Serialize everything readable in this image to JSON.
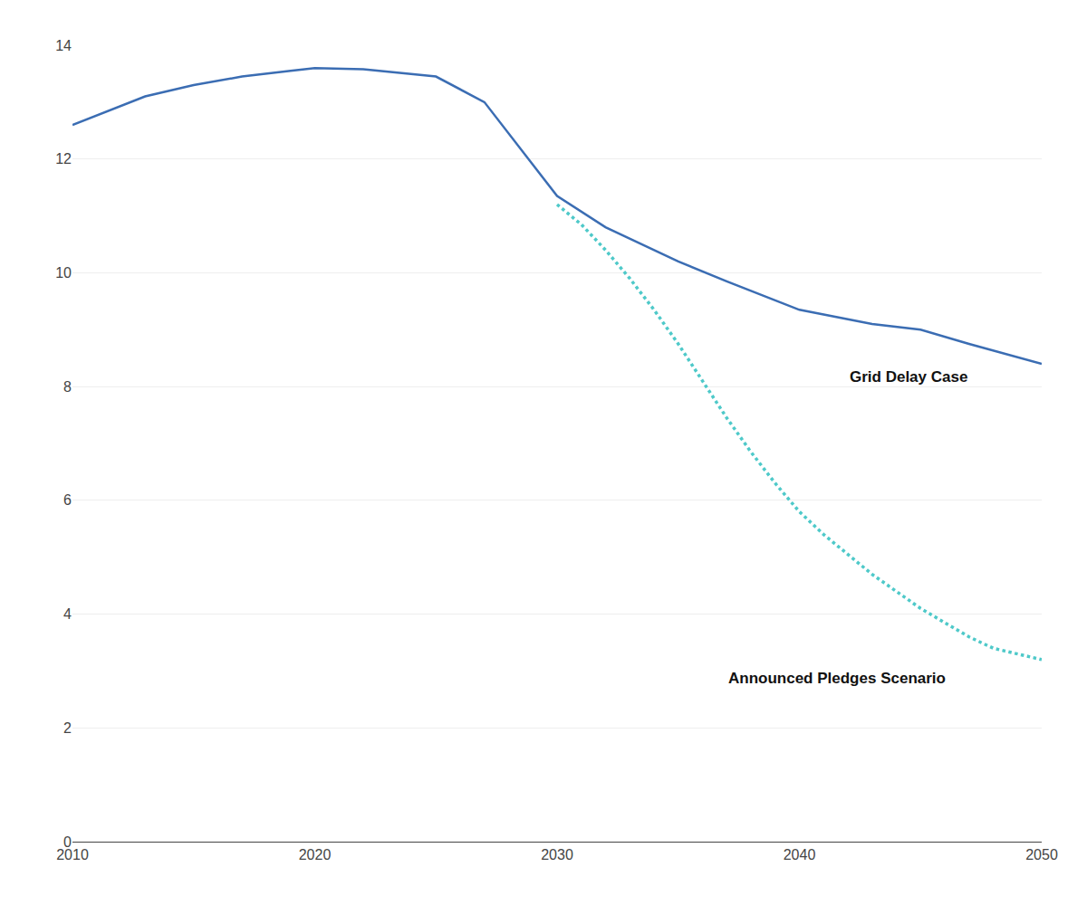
{
  "chart_data": {
    "type": "line",
    "series": [
      {
        "x": [
          2010,
          2013,
          2015,
          2017,
          2019,
          2020,
          2022,
          2025,
          2027,
          2030,
          2032,
          2035,
          2037,
          2040,
          2043,
          2045,
          2047,
          2050
        ],
        "values": [
          12.6,
          13.1,
          13.3,
          13.45,
          13.55,
          13.6,
          13.58,
          13.45,
          13.0,
          11.35,
          10.8,
          10.2,
          9.85,
          9.35,
          9.1,
          9.0,
          8.75,
          8.4
        ],
        "color": "#3B6DB3",
        "line_style": "solid"
      },
      {
        "x": [
          2030,
          2031,
          2032,
          2033,
          2034,
          2035,
          2036,
          2037,
          2038,
          2039,
          2040,
          2041,
          2042,
          2043,
          2044,
          2045,
          2046,
          2047,
          2048,
          2049,
          2050
        ],
        "values": [
          11.2,
          10.85,
          10.4,
          9.9,
          9.35,
          8.75,
          8.1,
          7.45,
          6.85,
          6.3,
          5.8,
          5.4,
          5.05,
          4.7,
          4.4,
          4.1,
          3.85,
          3.6,
          3.4,
          3.3,
          3.2
        ],
        "color": "#4EC9C9",
        "line_style": "dotted"
      }
    ],
    "annotations": [
      {
        "text": "Grid Delay Case",
        "x": 2042,
        "y": 8.35
      },
      {
        "text": "Announced Pledges Scenario",
        "x": 2037,
        "y": 3.05
      }
    ],
    "xlim": [
      2010,
      2050
    ],
    "ylim": [
      0,
      14
    ],
    "xticks": [
      2010,
      2020,
      2030,
      2040,
      2050
    ],
    "yticks": [
      0,
      2,
      4,
      6,
      8,
      10,
      12,
      14
    ],
    "grid": "y"
  }
}
